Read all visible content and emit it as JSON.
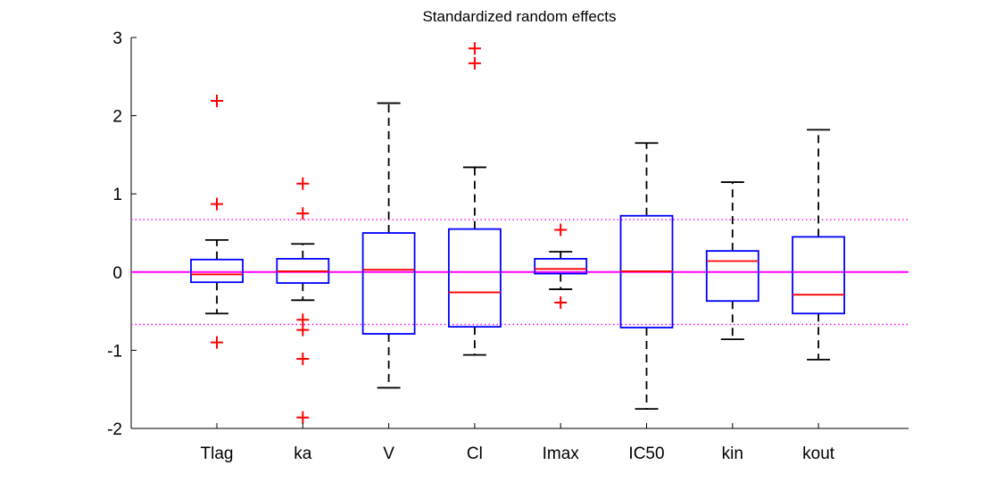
{
  "chart_data": {
    "type": "box",
    "title": "Standardized random effects",
    "xlabel": "",
    "ylabel": "",
    "ylim": [
      -2,
      3
    ],
    "yticks": [
      -2,
      -1,
      0,
      1,
      2,
      3
    ],
    "grid": false,
    "categories": [
      "Tlag",
      "ka",
      "V",
      "Cl",
      "Imax",
      "IC50",
      "kin",
      "kout"
    ],
    "boxes": [
      {
        "whisker_low": -0.53,
        "q1": -0.13,
        "median": -0.03,
        "q3": 0.16,
        "whisker_high": 0.41,
        "outliers": [
          2.19,
          0.87,
          -0.9
        ]
      },
      {
        "whisker_low": -0.36,
        "q1": -0.14,
        "median": 0.01,
        "q3": 0.17,
        "whisker_high": 0.36,
        "outliers": [
          1.13,
          0.75,
          -0.61,
          -0.74,
          -1.11,
          -1.86
        ]
      },
      {
        "whisker_low": -1.48,
        "q1": -0.79,
        "median": 0.03,
        "q3": 0.5,
        "whisker_high": 2.16,
        "outliers": []
      },
      {
        "whisker_low": -1.06,
        "q1": -0.7,
        "median": -0.26,
        "q3": 0.55,
        "whisker_high": 1.34,
        "outliers": [
          2.86,
          2.67
        ]
      },
      {
        "whisker_low": -0.22,
        "q1": -0.02,
        "median": 0.04,
        "q3": 0.17,
        "whisker_high": 0.26,
        "outliers": [
          0.54,
          -0.39
        ]
      },
      {
        "whisker_low": -1.75,
        "q1": -0.71,
        "median": 0.01,
        "q3": 0.72,
        "whisker_high": 1.65,
        "outliers": []
      },
      {
        "whisker_low": -0.86,
        "q1": -0.37,
        "median": 0.14,
        "q3": 0.27,
        "whisker_high": 1.15,
        "outliers": []
      },
      {
        "whisker_low": -1.12,
        "q1": -0.53,
        "median": -0.29,
        "q3": 0.45,
        "whisker_high": 1.82,
        "outliers": []
      }
    ],
    "reference_lines": [
      {
        "y": 0,
        "style": "solid",
        "color": "#ff00ff"
      },
      {
        "y": 0.67,
        "style": "dotted",
        "color": "#ff00ff"
      },
      {
        "y": -0.67,
        "style": "dotted",
        "color": "#ff00ff"
      }
    ],
    "colors": {
      "box": "#0000ff",
      "median": "#ff0000",
      "whisker": "#000000",
      "outlier": "#ff0000",
      "reference": "#ff00ff"
    }
  }
}
